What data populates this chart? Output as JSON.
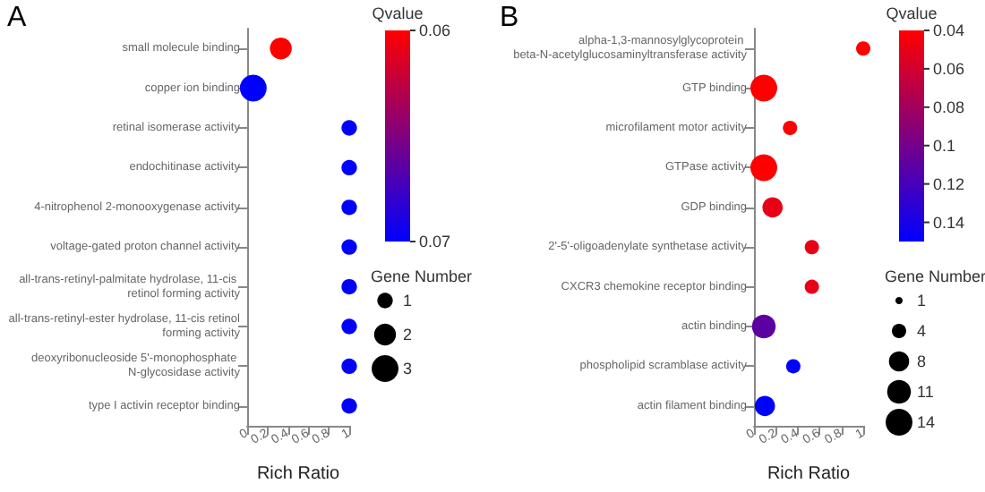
{
  "chart_data": [
    {
      "type": "bubble",
      "orientation": "horizontal",
      "title": "A",
      "xlabel": "Rich Ratio",
      "clabel": "Qvalue",
      "legend_title": "Gene Number",
      "grid": false,
      "categories": [
        "small molecule binding",
        "copper ion binding",
        "retinal isomerase activity",
        "endochitinase activity",
        "4-nitrophenol 2-monooxygenase activity",
        "voltage-gated proton channel activity",
        "all-trans-retinyl-palmitate hydrolase, 11-cis retinol forming activity",
        "all-trans-retinyl-ester hydrolase, 11-cis retinol forming activity",
        "deoxyribonucleoside 5'-monophosphate N-glycosidase activity",
        "type I activin receptor binding"
      ],
      "values": [
        0.33,
        0.06,
        1,
        1,
        1,
        1,
        1,
        1,
        1,
        1
      ],
      "sizes": [
        2,
        3,
        1,
        1,
        1,
        1,
        1,
        1,
        1,
        1
      ],
      "cvalues": [
        0.06,
        0.07,
        0.07,
        0.07,
        0.07,
        0.07,
        0.07,
        0.07,
        0.07,
        0.07
      ],
      "clim": [
        0.06,
        0.07
      ],
      "cticks": [
        0.06,
        0.07
      ],
      "size_legend": [
        1,
        2,
        3
      ],
      "xlim": [
        0,
        1
      ],
      "xticks": [
        0,
        0.2,
        0.4,
        0.6,
        0.8,
        1
      ]
    },
    {
      "type": "bubble",
      "orientation": "horizontal",
      "title": "B",
      "xlabel": "Rich Ratio",
      "clabel": "Qvalue",
      "legend_title": "Gene Number",
      "grid": false,
      "categories": [
        "alpha-1,3-mannosylglycoprotein beta-N-acetylglucosaminyltransferase activity",
        "GTP binding",
        "microfilament motor activity",
        "GTPase activity",
        "GDP binding",
        "2'-5'-oligoadenylate synthetase activity",
        "CXCR3 chemokine receptor binding",
        "actin binding",
        "phospholipid scramblase activity",
        "actin filament binding"
      ],
      "values": [
        1,
        0.09,
        0.33,
        0.09,
        0.17,
        0.53,
        0.53,
        0.09,
        0.36,
        0.1
      ],
      "sizes": [
        4,
        14,
        4,
        14,
        8,
        4,
        4,
        11,
        4,
        8
      ],
      "cvalues": [
        0.04,
        0.04,
        0.04,
        0.04,
        0.05,
        0.05,
        0.05,
        0.11,
        0.15,
        0.15
      ],
      "clim": [
        0.04,
        0.15
      ],
      "cticks": [
        0.04,
        0.06,
        0.08,
        0.1,
        0.12,
        0.14
      ],
      "size_legend": [
        1,
        4,
        8,
        11,
        14
      ],
      "xlim": [
        0,
        1
      ],
      "xticks": [
        0,
        0.2,
        0.4,
        0.6,
        0.8,
        1
      ]
    }
  ]
}
